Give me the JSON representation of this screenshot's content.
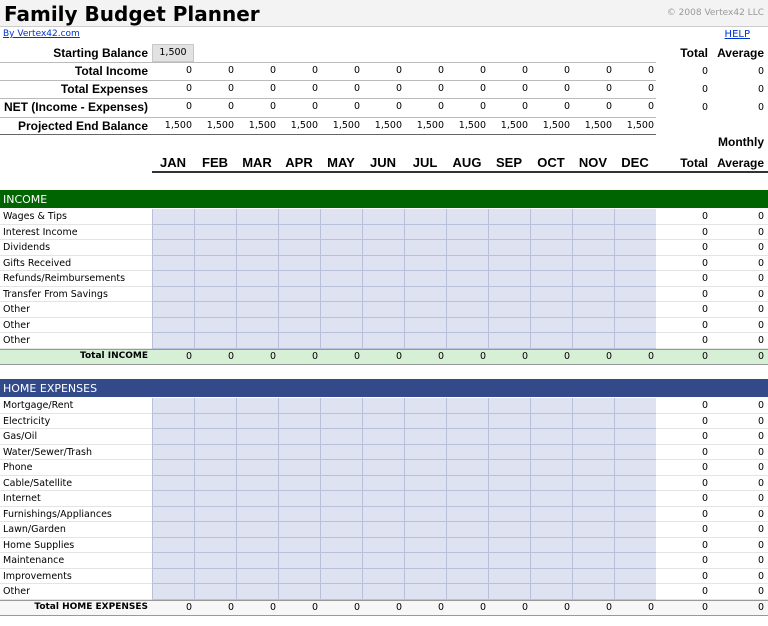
{
  "header": {
    "title": "Family Budget Planner",
    "copyright": "© 2008 Vertex42 LLC",
    "link": "By Vertex42.com",
    "help": "HELP"
  },
  "summary": {
    "starting_balance_label": "Starting Balance",
    "starting_balance": "1,500",
    "total_header": "Total",
    "average_header": "Average",
    "rows": [
      {
        "label": "Total Income",
        "values": [
          0,
          0,
          0,
          0,
          0,
          0,
          0,
          0,
          0,
          0,
          0,
          0
        ],
        "total": 0,
        "average": 0
      },
      {
        "label": "Total Expenses",
        "values": [
          0,
          0,
          0,
          0,
          0,
          0,
          0,
          0,
          0,
          0,
          0,
          0
        ],
        "total": 0,
        "average": 0
      },
      {
        "label": "NET (Income - Expenses)",
        "values": [
          0,
          0,
          0,
          0,
          0,
          0,
          0,
          0,
          0,
          0,
          0,
          0
        ],
        "total": 0,
        "average": 0
      },
      {
        "label": "Projected End Balance",
        "values": [
          "1,500",
          "1,500",
          "1,500",
          "1,500",
          "1,500",
          "1,500",
          "1,500",
          "1,500",
          "1,500",
          "1,500",
          "1,500",
          "1,500"
        ]
      }
    ]
  },
  "columns": {
    "monthly": "Monthly",
    "months": [
      "JAN",
      "FEB",
      "MAR",
      "APR",
      "MAY",
      "JUN",
      "JUL",
      "AUG",
      "SEP",
      "OCT",
      "NOV",
      "DEC"
    ],
    "total": "Total",
    "average": "Average"
  },
  "sections": [
    {
      "title": "INCOME",
      "items": [
        {
          "label": "Wages & Tips",
          "total": 0,
          "average": 0
        },
        {
          "label": "Interest Income",
          "total": 0,
          "average": 0
        },
        {
          "label": "Dividends",
          "total": 0,
          "average": 0
        },
        {
          "label": "Gifts Received",
          "total": 0,
          "average": 0
        },
        {
          "label": "Refunds/Reimbursements",
          "total": 0,
          "average": 0
        },
        {
          "label": "Transfer From Savings",
          "total": 0,
          "average": 0
        },
        {
          "label": "Other",
          "total": 0,
          "average": 0
        },
        {
          "label": "Other",
          "total": 0,
          "average": 0
        },
        {
          "label": "Other",
          "total": 0,
          "average": 0
        }
      ],
      "total_row": {
        "label": "Total INCOME",
        "values": [
          0,
          0,
          0,
          0,
          0,
          0,
          0,
          0,
          0,
          0,
          0,
          0
        ],
        "total": 0,
        "average": 0
      }
    },
    {
      "title": "HOME EXPENSES",
      "items": [
        {
          "label": "Mortgage/Rent",
          "total": 0,
          "average": 0
        },
        {
          "label": "Electricity",
          "total": 0,
          "average": 0
        },
        {
          "label": "Gas/Oil",
          "total": 0,
          "average": 0
        },
        {
          "label": "Water/Sewer/Trash",
          "total": 0,
          "average": 0
        },
        {
          "label": "Phone",
          "total": 0,
          "average": 0
        },
        {
          "label": "Cable/Satellite",
          "total": 0,
          "average": 0
        },
        {
          "label": "Internet",
          "total": 0,
          "average": 0
        },
        {
          "label": "Furnishings/Appliances",
          "total": 0,
          "average": 0
        },
        {
          "label": "Lawn/Garden",
          "total": 0,
          "average": 0
        },
        {
          "label": "Home Supplies",
          "total": 0,
          "average": 0
        },
        {
          "label": "Maintenance",
          "total": 0,
          "average": 0
        },
        {
          "label": "Improvements",
          "total": 0,
          "average": 0
        },
        {
          "label": "Other",
          "total": 0,
          "average": 0
        }
      ],
      "total_row": {
        "label": "Total HOME EXPENSES",
        "values": [
          0,
          0,
          0,
          0,
          0,
          0,
          0,
          0,
          0,
          0,
          0,
          0
        ],
        "total": 0,
        "average": 0
      }
    }
  ]
}
